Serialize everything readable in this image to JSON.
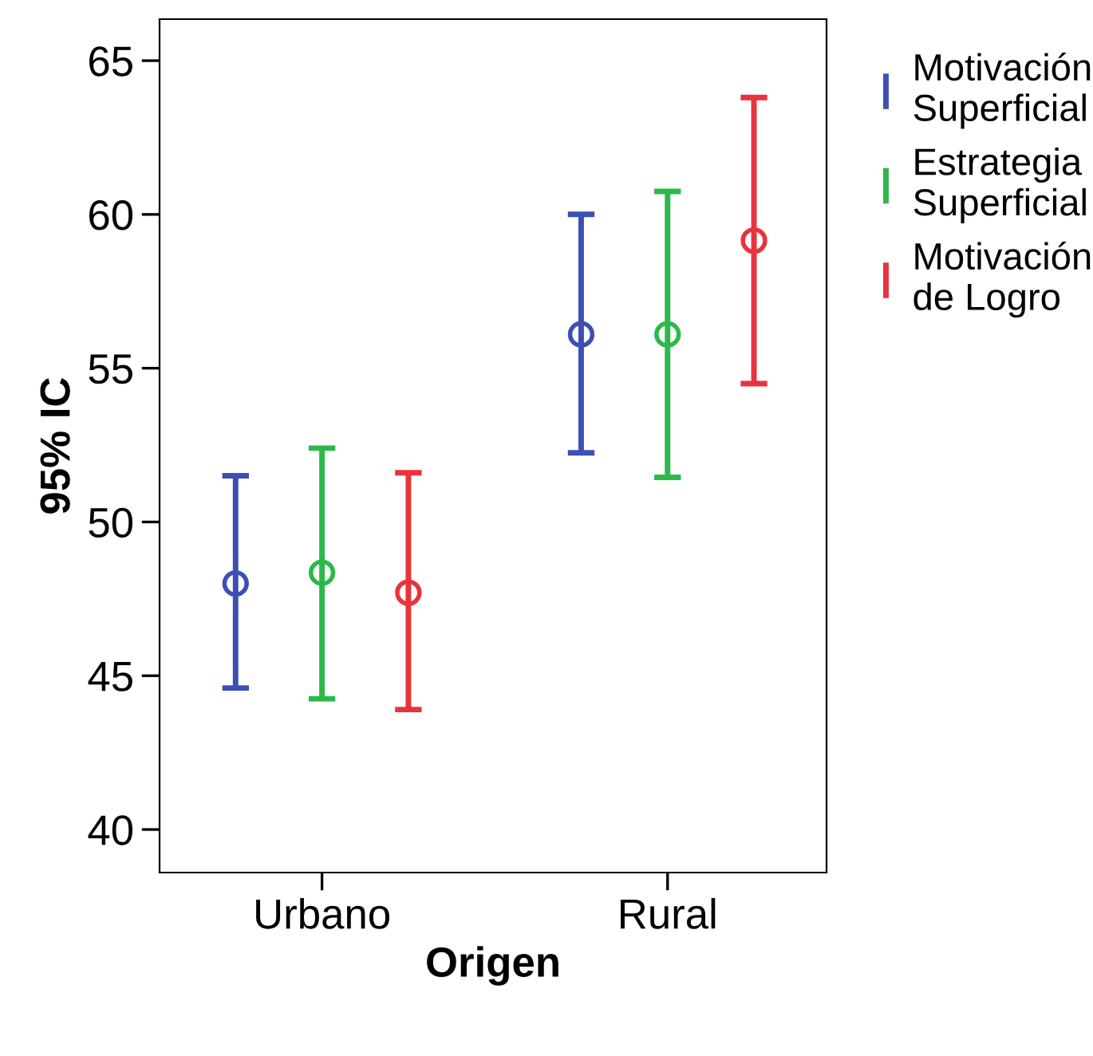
{
  "chart_data": {
    "type": "scatter",
    "xlabel": "Origen",
    "ylabel": "95% IC",
    "categories": [
      "Urbano",
      "Rural"
    ],
    "ylim": [
      38.6,
      66.35
    ],
    "yticks": [
      40,
      45,
      50,
      55,
      60,
      65
    ],
    "grid": false,
    "legend": "right",
    "marker": "circle",
    "series": [
      {
        "name": "Motivación Superficial",
        "color": "#3c50b4",
        "values": [
          48.0,
          56.1
        ],
        "errors": [
          [
            44.6,
            51.5
          ],
          [
            52.25,
            60.0
          ]
        ]
      },
      {
        "name": "Estrategia Superficial",
        "color": "#2db84a",
        "values": [
          48.35,
          56.1
        ],
        "errors": [
          [
            44.25,
            52.4
          ],
          [
            51.45,
            60.75
          ]
        ]
      },
      {
        "name": "Motivación de Logro",
        "color": "#e8333c",
        "values": [
          47.7,
          59.15
        ],
        "errors": [
          [
            43.9,
            51.6
          ],
          [
            54.5,
            63.8
          ]
        ]
      }
    ]
  }
}
